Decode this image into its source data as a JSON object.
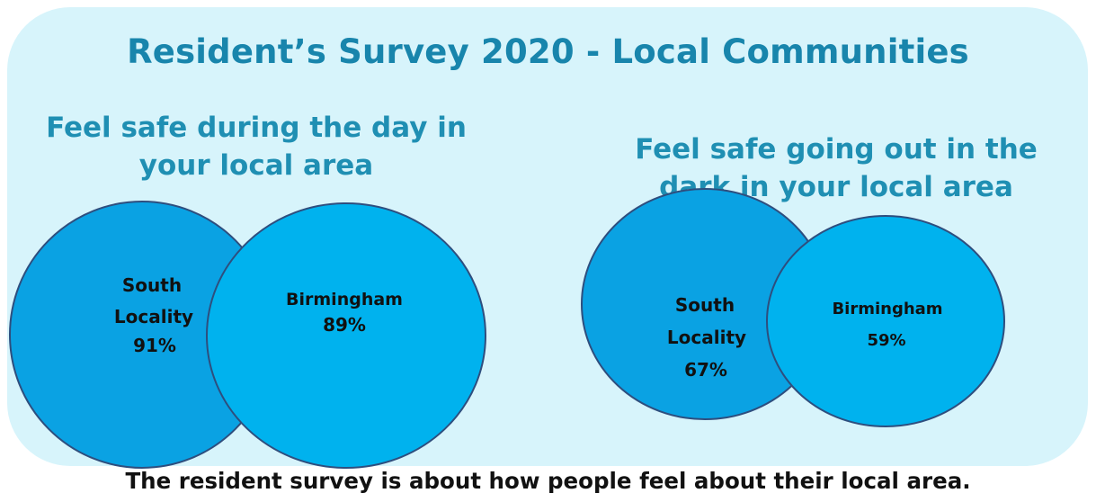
{
  "title": "Resident’s Survey 2020 - Local Communities",
  "footer": "The resident survey is about how people feel about their local area.",
  "colors": {
    "panel": "#d7f4fb",
    "title": "#1885ac",
    "circle_left": "#0aa2e3",
    "circle_right": "#00b2ee",
    "circle_stroke": "#2e4e7e"
  },
  "chart_data": [
    {
      "type": "venn",
      "title": "Feel safe during the day in your local area",
      "sets": [
        {
          "line1": "South",
          "line2": "Locality",
          "value_label": "91%",
          "value": 91
        },
        {
          "line1": "Birmingham",
          "value_label": "89%",
          "value": 89
        }
      ]
    },
    {
      "type": "venn",
      "title": "Feel safe going out in the dark in your local area",
      "sets": [
        {
          "line1": "South",
          "line2": "Locality",
          "value_label": "67%",
          "value": 67
        },
        {
          "line1": "Birmingham",
          "value_label": "59%",
          "value": 59
        }
      ]
    }
  ]
}
